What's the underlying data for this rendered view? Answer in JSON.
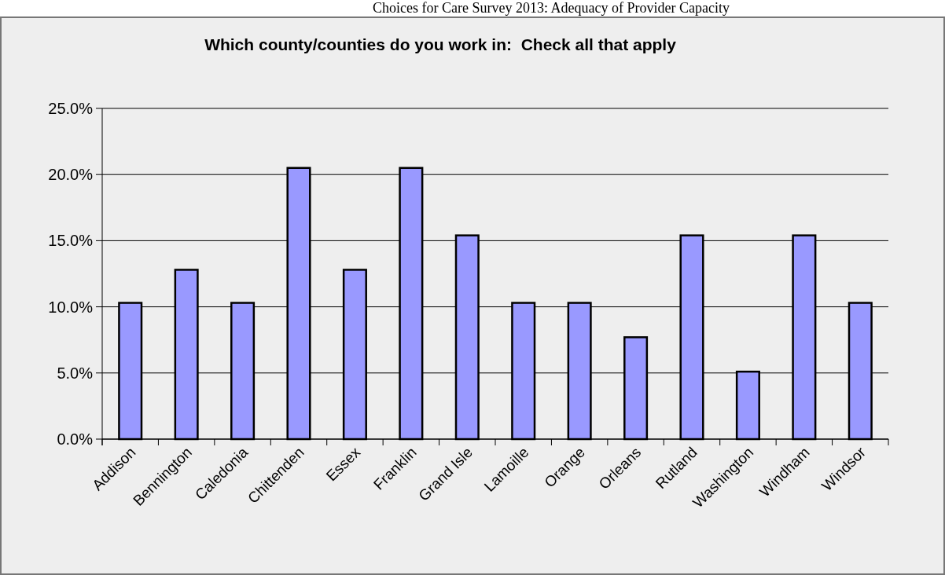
{
  "chart_data": {
    "type": "bar",
    "title": "Which county/counties do you work in:  Check all that apply",
    "annotations": [
      "Choices for Care Survey 2013: Adequacy of Provider Capacity"
    ],
    "categories": [
      "Addison",
      "Bennington",
      "Caledonia",
      "Chittenden",
      "Essex",
      "Franklin",
      "Grand Isle",
      "Lamoille",
      "Orange",
      "Orleans",
      "Rutland",
      "Washington",
      "Windham",
      "Windsor"
    ],
    "values": [
      10.3,
      12.8,
      10.3,
      20.5,
      12.8,
      20.5,
      15.4,
      10.3,
      10.3,
      7.7,
      15.4,
      5.1,
      15.4,
      10.3
    ],
    "color": "#9999ff",
    "ylim": [
      0,
      25
    ],
    "yticks": [
      {
        "value": 0,
        "label": "0.0%"
      },
      {
        "value": 5,
        "label": "5.0%"
      },
      {
        "value": 10,
        "label": "10.0%"
      },
      {
        "value": 15,
        "label": "15.0%"
      },
      {
        "value": 20,
        "label": "20.0%"
      },
      {
        "value": 25,
        "label": "25.0%"
      }
    ],
    "grid": "y"
  }
}
